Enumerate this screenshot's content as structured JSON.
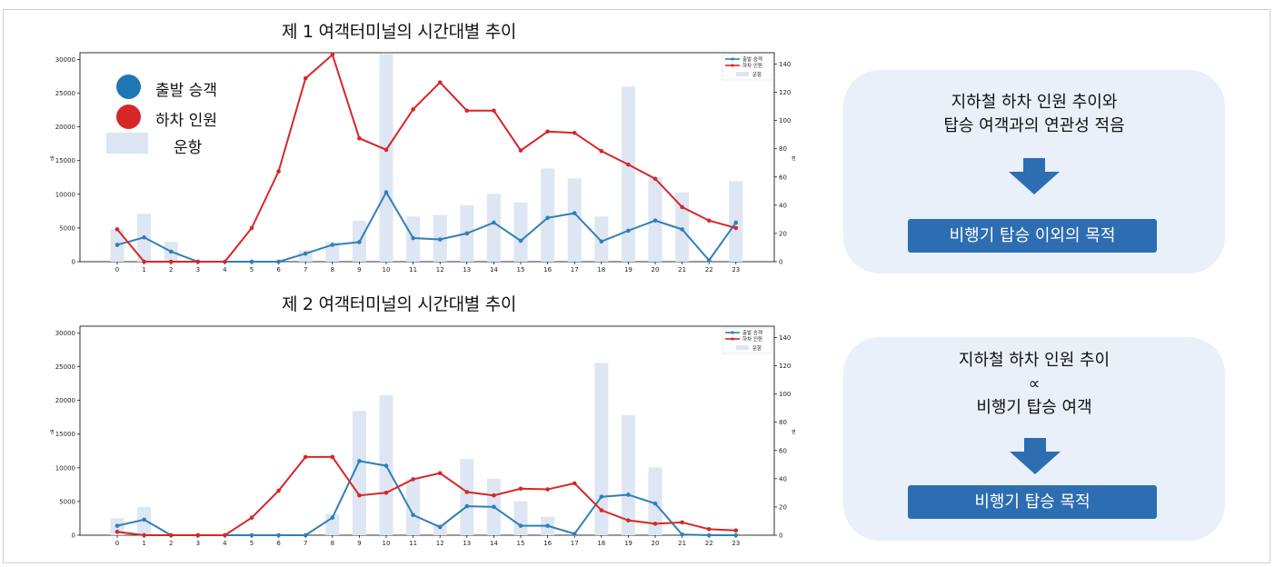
{
  "chart_data": [
    {
      "type": "bar+line",
      "title": "제 1 여객터미널의 시간대별 추이",
      "categories": [
        "0",
        "1",
        "2",
        "3",
        "4",
        "5",
        "6",
        "7",
        "8",
        "9",
        "10",
        "11",
        "12",
        "13",
        "14",
        "15",
        "16",
        "17",
        "18",
        "19",
        "20",
        "21",
        "22",
        "23"
      ],
      "series": [
        {
          "name": "출발 승객",
          "kind": "line",
          "axis": "left",
          "color": "#2f7fb8",
          "values": [
            2500,
            3600,
            1500,
            0,
            0,
            0,
            0,
            1200,
            2500,
            2900,
            10300,
            3500,
            3300,
            4200,
            5800,
            3100,
            6500,
            7200,
            3000,
            4600,
            6100,
            4800,
            200,
            5800
          ]
        },
        {
          "name": "하차 인원",
          "kind": "line",
          "axis": "left",
          "color": "#d62728",
          "values": [
            4800,
            0,
            0,
            0,
            0,
            5000,
            13400,
            27200,
            30700,
            18300,
            16600,
            22600,
            26600,
            22400,
            22400,
            16500,
            19300,
            19100,
            16400,
            14400,
            12300,
            8100,
            6100,
            5000
          ]
        },
        {
          "name": "운항",
          "kind": "bar",
          "axis": "right",
          "color": "#dde6f2",
          "values": [
            23,
            34,
            14,
            0,
            0,
            0,
            0,
            8,
            14,
            29,
            147,
            32,
            33,
            40,
            48,
            42,
            66,
            59,
            32,
            124,
            60,
            49,
            0,
            57
          ]
        }
      ],
      "ylim_left": [
        0,
        31000
      ],
      "yticks_left": [
        0,
        5000,
        10000,
        15000,
        20000,
        25000,
        30000
      ],
      "ylim_right": [
        0,
        148
      ],
      "yticks_right": [
        0,
        20,
        40,
        60,
        80,
        100,
        120,
        140
      ],
      "ylabel_left": "명",
      "ylabel_right": "편",
      "legend": [
        "출발 승객",
        "하차 인원",
        "운항"
      ],
      "legend_position": "top-right"
    },
    {
      "type": "bar+line",
      "title": "제 2 여객터미널의 시간대별 추이",
      "categories": [
        "0",
        "1",
        "2",
        "3",
        "4",
        "5",
        "6",
        "7",
        "8",
        "9",
        "10",
        "11",
        "12",
        "13",
        "14",
        "15",
        "16",
        "17",
        "18",
        "19",
        "20",
        "21",
        "22",
        "23"
      ],
      "series": [
        {
          "name": "출발 승객",
          "kind": "line",
          "axis": "left",
          "color": "#2f7fb8",
          "values": [
            1400,
            2300,
            0,
            0,
            0,
            0,
            0,
            0,
            2600,
            11000,
            10300,
            3000,
            1200,
            4300,
            4200,
            1400,
            1400,
            200,
            5700,
            6000,
            4700,
            100,
            0,
            0
          ]
        },
        {
          "name": "하차 인원",
          "kind": "line",
          "axis": "left",
          "color": "#d62728",
          "values": [
            500,
            0,
            0,
            0,
            0,
            2600,
            6600,
            11600,
            11600,
            5900,
            6300,
            8300,
            9200,
            6400,
            5900,
            6900,
            6800,
            7700,
            3700,
            2200,
            1700,
            1900,
            900,
            700
          ]
        },
        {
          "name": "운항",
          "kind": "bar",
          "axis": "right",
          "color": "#dde6f2",
          "values": [
            12,
            20,
            0,
            0,
            0,
            0,
            0,
            0,
            15,
            88,
            99,
            40,
            8,
            54,
            40,
            24,
            13,
            0,
            122,
            85,
            48,
            0,
            0,
            0
          ]
        }
      ],
      "ylim_left": [
        0,
        31000
      ],
      "yticks_left": [
        0,
        5000,
        10000,
        15000,
        20000,
        25000,
        30000
      ],
      "ylim_right": [
        0,
        148
      ],
      "yticks_right": [
        0,
        20,
        40,
        60,
        80,
        100,
        120,
        140
      ],
      "ylabel_left": "명",
      "ylabel_right": "편",
      "legend": [
        "출발 승객",
        "하차 인원",
        "운항"
      ],
      "legend_position": "top-right"
    }
  ],
  "big_legend": {
    "departure": "출발 승객",
    "alighting": "하차 인원",
    "flights": "운항",
    "colors": {
      "departure": "#1f77b4",
      "alighting": "#d62728",
      "flights": "#dde6f2"
    }
  },
  "panels": [
    {
      "line1": "지하철 하차 인원 추이와",
      "line2": "탑승 여객과의 연관성 적음",
      "button": "비행기 탑승 이외의 목적"
    },
    {
      "line1": "지하철 하차 인원 추이",
      "line2": "∝",
      "line3": "비행기 탑승 여객",
      "button": "비행기 탑승 목적"
    }
  ],
  "colors": {
    "accent": "#2d6db2",
    "panel_bg": "#e9f0fa"
  }
}
